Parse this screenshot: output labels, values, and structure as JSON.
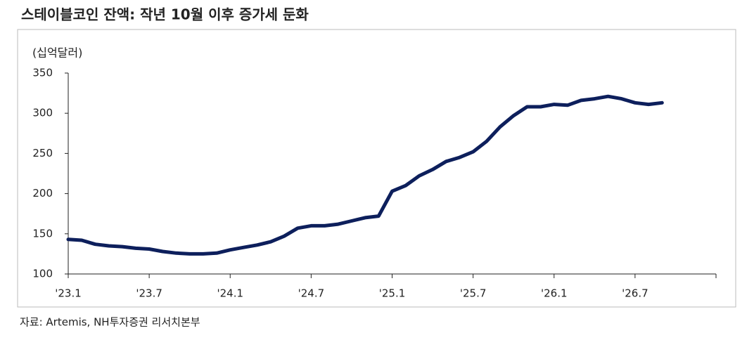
{
  "chart_data": {
    "type": "line",
    "title": "스테이블코인 잔액: 작년 10월 이후 증가세 둔화",
    "y_label": "(십억달러)",
    "source": "자료: Artemis, NH투자증권 리서치본부",
    "categories": [
      "'23.1",
      null,
      null,
      null,
      null,
      null,
      "'23.7",
      null,
      null,
      null,
      null,
      null,
      "'24.1",
      null,
      null,
      null,
      null,
      null,
      "'24.7",
      null,
      null,
      null,
      null,
      null,
      "'25.1",
      null,
      null,
      null,
      null,
      null,
      "'25.7",
      null,
      null,
      null,
      null,
      null,
      "'26.1",
      null,
      null,
      null,
      null,
      null,
      "'26.7",
      null,
      null,
      null,
      null,
      null,
      null
    ],
    "values": [
      143,
      142,
      137,
      135,
      134,
      132,
      131,
      128,
      126,
      125,
      125,
      126,
      130,
      133,
      136,
      140,
      147,
      157,
      160,
      160,
      162,
      166,
      170,
      172,
      203,
      210,
      222,
      230,
      240,
      245,
      252,
      265,
      283,
      297,
      308,
      308,
      311,
      310,
      316,
      318,
      321,
      318,
      313,
      311,
      313,
      null,
      null,
      null,
      null
    ],
    "color": "#0d1f5c",
    "ylim": [
      100,
      350
    ],
    "yticks": [
      100,
      150,
      200,
      250,
      300,
      350
    ]
  }
}
